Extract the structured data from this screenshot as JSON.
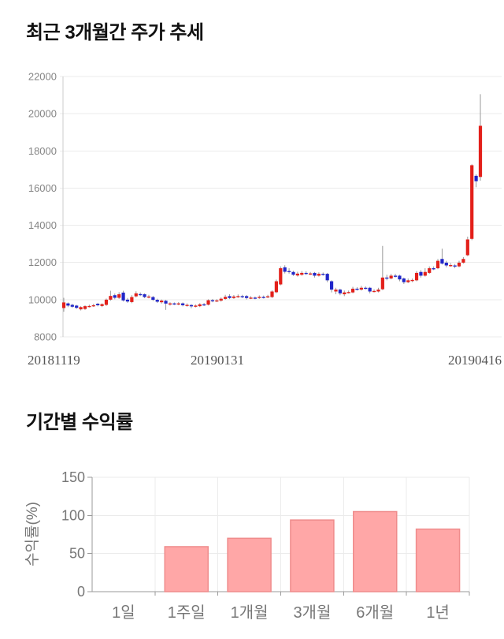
{
  "page": {
    "background": "#ffffff"
  },
  "colors": {
    "up": "#e3201a",
    "down": "#2126c9",
    "wick": "#999999",
    "grid": "#ebebeb",
    "axis": "#cccccc",
    "bar_axis": "#9a9a9a",
    "bar_fill": "#ffa7a7",
    "bar_stroke": "#ef8c8c",
    "tick_label": "#858585",
    "date_label": "#555555",
    "label": "#777777",
    "title": "#111111"
  },
  "chart_data": [
    {
      "type": "candlestick",
      "title": "최근 3개월간 주가 추세",
      "x_labels": [
        "20181119",
        "20190131",
        "20190416"
      ],
      "y_ticks": [
        22000,
        20000,
        18000,
        16000,
        14000,
        12000,
        10000,
        8000
      ],
      "ylim": [
        8000,
        22000
      ],
      "grid": "horizontal-only",
      "up_means": "close-above-open-red",
      "candle_format": [
        "open",
        "close",
        "low",
        "high"
      ],
      "candles": [
        [
          9550,
          9850,
          9350,
          10100
        ],
        [
          9800,
          9680,
          9600,
          9850
        ],
        [
          9720,
          9620,
          9560,
          9780
        ],
        [
          9680,
          9560,
          9500,
          9720
        ],
        [
          9480,
          9600,
          9420,
          9650
        ],
        [
          9500,
          9650,
          9450,
          9700
        ],
        [
          9640,
          9660,
          9580,
          9730
        ],
        [
          9670,
          9700,
          9610,
          9780
        ],
        [
          9780,
          9700,
          9640,
          9830
        ],
        [
          9660,
          9760,
          9600,
          9800
        ],
        [
          9720,
          10000,
          9670,
          10060
        ],
        [
          10000,
          10200,
          9940,
          10480
        ],
        [
          10240,
          10100,
          10020,
          10330
        ],
        [
          10100,
          10290,
          10040,
          10400
        ],
        [
          10380,
          9960,
          9900,
          10480
        ],
        [
          10000,
          9900,
          9830,
          10090
        ],
        [
          9870,
          10140,
          9810,
          10240
        ],
        [
          10180,
          10340,
          10120,
          10450
        ],
        [
          10300,
          10270,
          10190,
          10390
        ],
        [
          10290,
          10140,
          10080,
          10340
        ],
        [
          10150,
          10170,
          10070,
          10260
        ],
        [
          10140,
          9990,
          9930,
          10200
        ],
        [
          9990,
          9890,
          9820,
          10050
        ],
        [
          9860,
          9950,
          9790,
          10010
        ],
        [
          9940,
          9790,
          9450,
          9990
        ],
        [
          9740,
          9800,
          9680,
          9860
        ],
        [
          9800,
          9770,
          9710,
          9850
        ],
        [
          9770,
          9800,
          9700,
          9870
        ],
        [
          9800,
          9700,
          9640,
          9850
        ],
        [
          9700,
          9720,
          9620,
          9800
        ],
        [
          9710,
          9640,
          9540,
          9760
        ],
        [
          9640,
          9680,
          9580,
          9750
        ],
        [
          9650,
          9750,
          9600,
          9810
        ],
        [
          9750,
          9720,
          9660,
          9820
        ],
        [
          9730,
          9970,
          9690,
          10020
        ],
        [
          9970,
          9940,
          9860,
          10040
        ],
        [
          9940,
          9960,
          9870,
          10030
        ],
        [
          9950,
          10050,
          9890,
          10120
        ],
        [
          10040,
          10150,
          9990,
          10260
        ],
        [
          10190,
          10090,
          10030,
          10290
        ],
        [
          10090,
          10170,
          10040,
          10250
        ],
        [
          10170,
          10190,
          10100,
          10280
        ],
        [
          10190,
          10160,
          10080,
          10260
        ],
        [
          10190,
          10090,
          10010,
          10250
        ],
        [
          10090,
          10110,
          10030,
          10190
        ],
        [
          10110,
          10090,
          10020,
          10170
        ],
        [
          10090,
          10150,
          10040,
          10230
        ],
        [
          10150,
          10130,
          10060,
          10220
        ],
        [
          10130,
          10180,
          10080,
          10260
        ],
        [
          10140,
          10440,
          10090,
          10500
        ],
        [
          10400,
          10990,
          10350,
          11080
        ],
        [
          10820,
          11690,
          10770,
          11790
        ],
        [
          11740,
          11500,
          11410,
          11850
        ],
        [
          11540,
          11490,
          11400,
          11690
        ],
        [
          11490,
          11340,
          11280,
          11550
        ],
        [
          11300,
          11400,
          11240,
          11500
        ],
        [
          11340,
          11440,
          11290,
          11540
        ],
        [
          11440,
          11390,
          11330,
          11530
        ],
        [
          11390,
          11410,
          11320,
          11490
        ],
        [
          11440,
          11290,
          11190,
          11490
        ],
        [
          11290,
          11390,
          11240,
          11470
        ],
        [
          11390,
          11370,
          11290,
          11460
        ],
        [
          11390,
          11040,
          10940,
          11440
        ],
        [
          10990,
          10540,
          10390,
          11040
        ],
        [
          10440,
          10540,
          10290,
          10640
        ],
        [
          10540,
          10340,
          10240,
          10590
        ],
        [
          10290,
          10390,
          10190,
          10490
        ],
        [
          10390,
          10410,
          10330,
          10490
        ],
        [
          10390,
          10590,
          10340,
          10690
        ],
        [
          10590,
          10570,
          10490,
          10670
        ],
        [
          10540,
          10640,
          10490,
          10740
        ],
        [
          10640,
          10620,
          10550,
          10710
        ],
        [
          10640,
          10440,
          10340,
          10690
        ],
        [
          10440,
          10470,
          10390,
          10560
        ],
        [
          10440,
          10540,
          10390,
          10640
        ],
        [
          10560,
          11190,
          10510,
          12890
        ],
        [
          11190,
          11140,
          11040,
          11340
        ],
        [
          11140,
          11290,
          11090,
          11390
        ],
        [
          11290,
          11270,
          11190,
          11390
        ],
        [
          11290,
          11090,
          10990,
          11340
        ],
        [
          11140,
          10940,
          10840,
          11190
        ],
        [
          10940,
          11040,
          10890,
          11140
        ],
        [
          11040,
          11060,
          10940,
          11140
        ],
        [
          11040,
          11440,
          10990,
          11540
        ],
        [
          11490,
          11290,
          11190,
          11590
        ],
        [
          11290,
          11490,
          11240,
          11690
        ],
        [
          11440,
          11690,
          11390,
          11790
        ],
        [
          11690,
          11670,
          11590,
          11790
        ],
        [
          11690,
          12090,
          11640,
          12190
        ],
        [
          12190,
          11940,
          11890,
          12740
        ],
        [
          11990,
          11840,
          11740,
          12090
        ],
        [
          11840,
          11860,
          11770,
          11970
        ],
        [
          11840,
          11790,
          11690,
          11920
        ],
        [
          11790,
          11990,
          11740,
          12090
        ],
        [
          11990,
          12190,
          11940,
          12290
        ],
        [
          12390,
          13240,
          12340,
          13390
        ],
        [
          13270,
          17230,
          13200,
          17280
        ],
        [
          16660,
          16370,
          16050,
          16740
        ],
        [
          16600,
          19350,
          16400,
          21050
        ]
      ]
    },
    {
      "type": "bar",
      "title": "기간별 수익률",
      "ylabel": "수익률(%)",
      "categories": [
        "1일",
        "1주일",
        "1개월",
        "3개월",
        "6개월",
        "1년"
      ],
      "values": [
        0,
        59,
        70,
        94,
        105,
        82
      ],
      "y_ticks": [
        0,
        50,
        100,
        150
      ],
      "ylim": [
        0,
        150
      ],
      "grid": "both",
      "legend": "none"
    }
  ]
}
